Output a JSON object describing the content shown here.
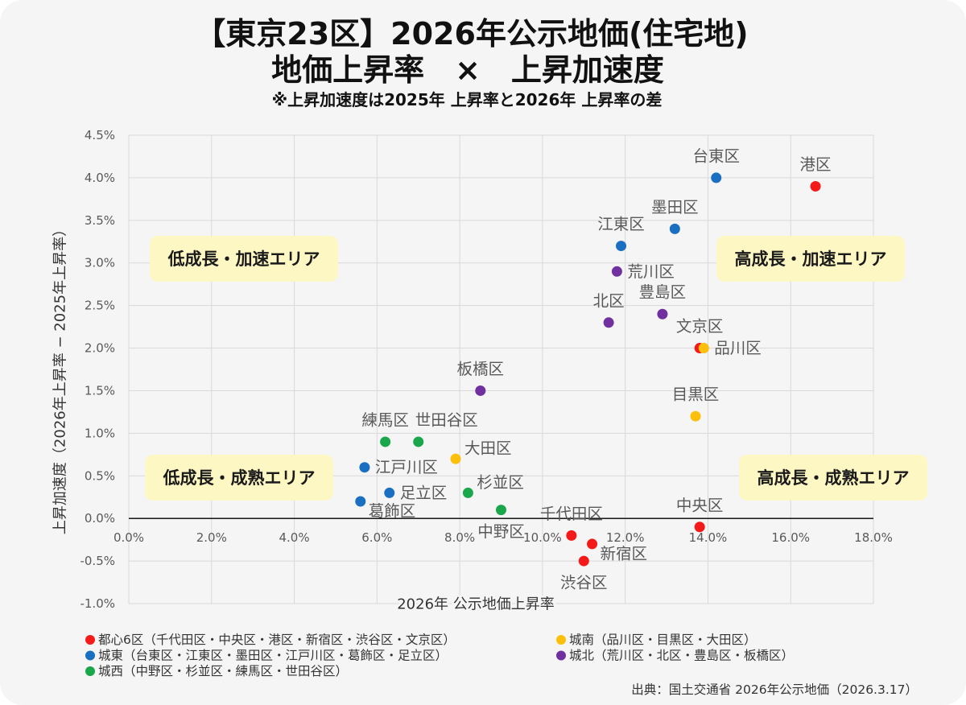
{
  "chart_data": {
    "type": "scatter",
    "title": "【東京23区】2026年公示地価(住宅地)",
    "subtitle": "地価上昇率　×　上昇加速度",
    "note": "※上昇加速度は2025年 上昇率と2026年 上昇率の差",
    "xlabel": "2026年 公示地価上昇率",
    "ylabel": "上昇加速度（2026年上昇率 − 2025年上昇率）",
    "xlim": [
      0,
      18
    ],
    "ylim": [
      -1,
      4.5
    ],
    "x_axis_at": 0,
    "grid": true,
    "legend_position": "bottom",
    "x_ticks": [
      {
        "value": 0,
        "label": "0.0%"
      },
      {
        "value": 2,
        "label": "2.0%"
      },
      {
        "value": 4,
        "label": "4.0%"
      },
      {
        "value": 6,
        "label": "6.0%"
      },
      {
        "value": 8,
        "label": "8.0%"
      },
      {
        "value": 10,
        "label": "10.0%"
      },
      {
        "value": 12,
        "label": "12.0%"
      },
      {
        "value": 14,
        "label": "14.0%"
      },
      {
        "value": 16,
        "label": "16.0%"
      },
      {
        "value": 18,
        "label": "18.0%"
      }
    ],
    "y_ticks": [
      {
        "value": 4.5,
        "label": "4.5%"
      },
      {
        "value": 4.0,
        "label": "4.0%"
      },
      {
        "value": 3.5,
        "label": "3.5%"
      },
      {
        "value": 3.0,
        "label": "3.0%"
      },
      {
        "value": 2.5,
        "label": "2.5%"
      },
      {
        "value": 2.0,
        "label": "2.0%"
      },
      {
        "value": 1.5,
        "label": "1.5%"
      },
      {
        "value": 1.0,
        "label": "1.0%"
      },
      {
        "value": 0.5,
        "label": "0.5%"
      },
      {
        "value": 0.0,
        "label": "0.0%"
      },
      {
        "value": -0.5,
        "label": "-0.5%"
      },
      {
        "value": -1.0,
        "label": "-1.0%"
      }
    ],
    "annotations": {
      "top_left": "低成長・加速エリア",
      "top_right": "高成長・加速エリア",
      "bottom_left": "低成長・成熟エリア",
      "bottom_right": "高成長・成熟エリア"
    },
    "annotation_fill": "#fdf7c3",
    "series": [
      {
        "name": "都心6区（千代田区・中央区・港区・新宿区・渋谷区・文京区）",
        "color": "#f41a1a",
        "points": [
          {
            "label": "千代田区",
            "x": 10.7,
            "y": -0.2,
            "label_pos": "top"
          },
          {
            "label": "中央区",
            "x": 13.8,
            "y": -0.1,
            "label_pos": "top"
          },
          {
            "label": "港区",
            "x": 16.6,
            "y": 3.9,
            "label_pos": "top"
          },
          {
            "label": "新宿区",
            "x": 11.2,
            "y": -0.3,
            "label_pos": "bottom-right"
          },
          {
            "label": "渋谷区",
            "x": 11.0,
            "y": -0.5,
            "label_pos": "bottom"
          },
          {
            "label": "文京区",
            "x": 13.8,
            "y": 2.0,
            "label_pos": "top"
          }
        ]
      },
      {
        "name": "城南（品川区・目黒区・大田区）",
        "color": "#fcbf0b",
        "points": [
          {
            "label": "品川区",
            "x": 13.9,
            "y": 2.0,
            "label_pos": "right"
          },
          {
            "label": "目黒区",
            "x": 13.7,
            "y": 1.2,
            "label_pos": "top"
          },
          {
            "label": "大田区",
            "x": 7.9,
            "y": 0.7,
            "label_pos": "upper-right"
          }
        ]
      },
      {
        "name": "城東（台東区・江東区・墨田区・江戸川区・葛飾区・足立区）",
        "color": "#1a6fc0",
        "points": [
          {
            "label": "台東区",
            "x": 14.2,
            "y": 4.0,
            "label_pos": "top"
          },
          {
            "label": "江東区",
            "x": 11.9,
            "y": 3.2,
            "label_pos": "top"
          },
          {
            "label": "墨田区",
            "x": 13.2,
            "y": 3.4,
            "label_pos": "top"
          },
          {
            "label": "江戸川区",
            "x": 5.7,
            "y": 0.6,
            "label_pos": "right"
          },
          {
            "label": "葛飾区",
            "x": 5.6,
            "y": 0.2,
            "label_pos": "bottom-right"
          },
          {
            "label": "足立区",
            "x": 6.3,
            "y": 0.3,
            "label_pos": "right"
          }
        ]
      },
      {
        "name": "城北（荒川区・北区・豊島区・板橋区）",
        "color": "#7030a0",
        "points": [
          {
            "label": "荒川区",
            "x": 11.8,
            "y": 2.9,
            "label_pos": "right"
          },
          {
            "label": "北区",
            "x": 11.6,
            "y": 2.3,
            "label_pos": "top"
          },
          {
            "label": "豊島区",
            "x": 12.9,
            "y": 2.4,
            "label_pos": "top"
          },
          {
            "label": "板橋区",
            "x": 8.5,
            "y": 1.5,
            "label_pos": "top"
          }
        ]
      },
      {
        "name": "城西（中野区・杉並区・練馬区・世田谷区）",
        "color": "#1aa64a",
        "points": [
          {
            "label": "中野区",
            "x": 9.0,
            "y": 0.1,
            "label_pos": "bottom"
          },
          {
            "label": "杉並区",
            "x": 8.2,
            "y": 0.3,
            "label_pos": "upper-right"
          },
          {
            "label": "練馬区",
            "x": 6.2,
            "y": 0.9,
            "label_pos": "top"
          },
          {
            "label": "世田谷区",
            "x": 7.0,
            "y": 0.9,
            "label_pos": "top-right"
          }
        ]
      }
    ]
  },
  "source": "出典：国土交通省 2026年公示地価（2026.3.17）"
}
